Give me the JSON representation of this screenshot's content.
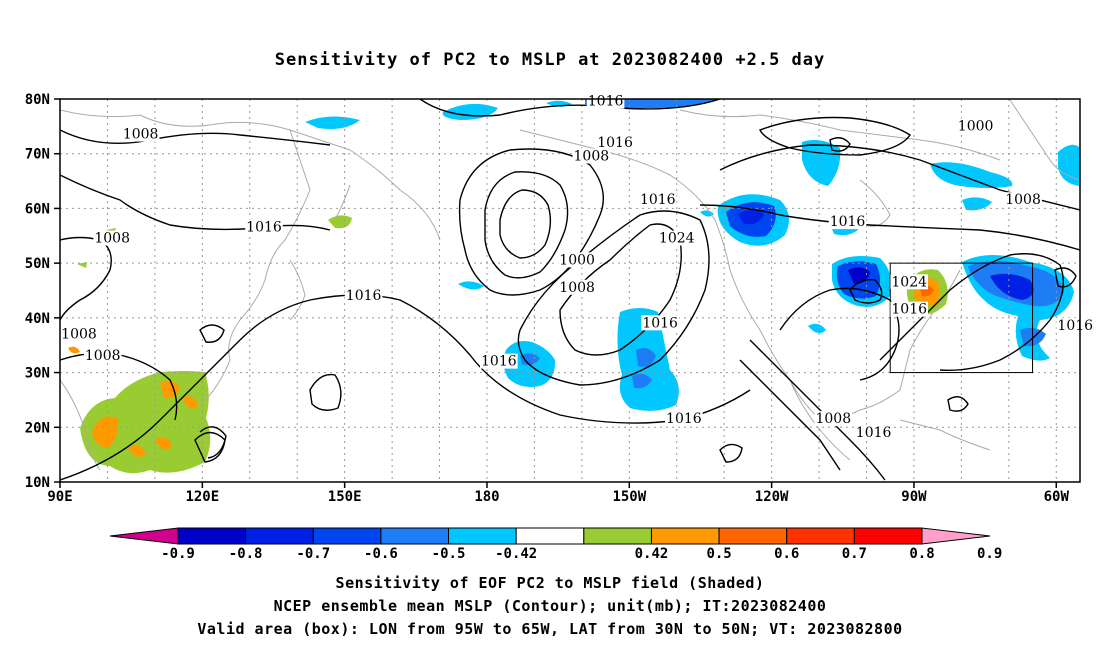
{
  "title": "Sensitivity of PC2 to MSLP at 2023082400 +2.5 day",
  "lat_labels": [
    "80N",
    "70N",
    "60N",
    "50N",
    "40N",
    "30N",
    "20N",
    "10N"
  ],
  "lon_labels": [
    "90E",
    "120E",
    "150E",
    "180",
    "150W",
    "120W",
    "90W",
    "60W"
  ],
  "contour_labels": [
    {
      "text": "1016",
      "lon": -155,
      "lat": 79.5
    },
    {
      "text": "1008",
      "lon": 107,
      "lat": 73.5
    },
    {
      "text": "1016",
      "lon": -153,
      "lat": 72
    },
    {
      "text": "1008",
      "lon": -158,
      "lat": 69.5
    },
    {
      "text": "1000",
      "lon": -77,
      "lat": 75
    },
    {
      "text": "1016",
      "lon": 133,
      "lat": 56.5
    },
    {
      "text": "1008",
      "lon": 101,
      "lat": 54.5
    },
    {
      "text": "1016",
      "lon": -144,
      "lat": 61.5
    },
    {
      "text": "1024",
      "lon": -140,
      "lat": 54.5
    },
    {
      "text": "1000",
      "lon": -161,
      "lat": 50.5
    },
    {
      "text": "1008",
      "lon": -161,
      "lat": 45.5
    },
    {
      "text": "1016",
      "lon": 154,
      "lat": 44
    },
    {
      "text": "1016",
      "lon": -104,
      "lat": 57.5
    },
    {
      "text": "1008",
      "lon": -67,
      "lat": 61.5
    },
    {
      "text": "1024",
      "lon": -91,
      "lat": 46.5
    },
    {
      "text": "1016",
      "lon": -91,
      "lat": 41.5
    },
    {
      "text": "1016",
      "lon": -56,
      "lat": 38.5
    },
    {
      "text": "1008",
      "lon": 94,
      "lat": 37
    },
    {
      "text": "1008",
      "lon": 99,
      "lat": 33
    },
    {
      "text": "1016",
      "lon": -143.5,
      "lat": 39
    },
    {
      "text": "1016",
      "lon": -177.5,
      "lat": 32
    },
    {
      "text": "1016",
      "lon": -138.5,
      "lat": 21.5
    },
    {
      "text": "1008",
      "lon": -107,
      "lat": 21.5
    },
    {
      "text": "1016",
      "lon": -98.5,
      "lat": 19
    }
  ],
  "valid_box": {
    "lon_min": -95,
    "lon_max": -65,
    "lat_min": 30,
    "lat_max": 50
  },
  "colorbar": {
    "tick_labels": [
      "-0.9",
      "-0.8",
      "-0.7",
      "-0.6",
      "-0.5",
      "-0.42",
      "0.42",
      "0.5",
      "0.6",
      "0.7",
      "0.8",
      "0.9"
    ],
    "colors": [
      "#d0008c",
      "#0000c8",
      "#0020e6",
      "#0046f0",
      "#1e7df5",
      "#00c8ff",
      "#ffffff",
      "#99cc33",
      "#ff9900",
      "#ff6600",
      "#ff3300",
      "#ff0000",
      "#ffa0c8"
    ]
  },
  "captions": [
    "Sensitivity of EOF PC2 to MSLP field (Shaded)",
    "NCEP ensemble mean MSLP (Contour); unit(mb); IT:2023082400",
    "Valid area (box): LON from 95W to 65W, LAT from 30N to 50N; VT: 2023082800"
  ]
}
